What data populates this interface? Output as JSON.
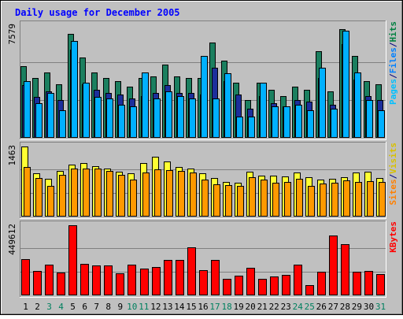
{
  "chart_data": {
    "type": "bar",
    "title": "Daily usage for December 2005",
    "categories": [
      "1",
      "2",
      "3",
      "4",
      "5",
      "6",
      "7",
      "8",
      "9",
      "10",
      "11",
      "12",
      "13",
      "14",
      "15",
      "16",
      "17",
      "18",
      "19",
      "20",
      "21",
      "22",
      "23",
      "24",
      "25",
      "26",
      "27",
      "28",
      "29",
      "30",
      "31"
    ],
    "weekend_days": [
      "3",
      "4",
      "10",
      "11",
      "17",
      "18",
      "24",
      "25",
      "31"
    ],
    "panels": [
      {
        "id": "hits",
        "max_label": "7579",
        "max": 7579,
        "legend": [
          {
            "text": "Hits",
            "color": "#008040"
          },
          {
            "text": "/",
            "color": "#000080"
          },
          {
            "text": "Files",
            "color": "#0080ff"
          },
          {
            "text": "/",
            "color": "#000080"
          },
          {
            "text": "Pages",
            "color": "#00c0ff"
          }
        ],
        "series": [
          {
            "name": "Hits",
            "color": "#1b7f5f",
            "values": [
              4800,
              4000,
              4400,
              3600,
              7000,
              5400,
              4400,
              4000,
              3800,
              3400,
              4000,
              4100,
              4900,
              4100,
              4000,
              4000,
              6400,
              5200,
              3700,
              2500,
              3700,
              3200,
              2800,
              3400,
              3200,
              5800,
              3100,
              7300,
              5500,
              3800,
              3600
            ]
          },
          {
            "name": "Files",
            "color": "#1c2f9c",
            "values": [
              3500,
              2700,
              3100,
              2500,
              5900,
              3600,
              3200,
              3000,
              2900,
              2600,
              2800,
              3000,
              3500,
              3000,
              3000,
              2900,
              4700,
              3800,
              2900,
              1900,
              2800,
              2300,
              2100,
              2500,
              2400,
              4000,
              2200,
              6300,
              3900,
              2800,
              2500
            ]
          },
          {
            "name": "Pages",
            "color": "#00b0ff",
            "values": [
              3800,
              2300,
              3000,
              1800,
              6500,
              3700,
              2700,
              2600,
              2200,
              2100,
              4400,
              2600,
              3100,
              2800,
              2600,
              5500,
              2600,
              4300,
              1400,
              1400,
              3700,
              2100,
              2100,
              2200,
              1800,
              4700,
              1900,
              7200,
              4400,
              2500,
              1800
            ]
          }
        ]
      },
      {
        "id": "visits",
        "max_label": "1463",
        "max": 1463,
        "legend": [
          {
            "text": "Visits",
            "color": "#d8c000"
          },
          {
            "text": "/",
            "color": "#000080"
          },
          {
            "text": "Sites",
            "color": "#ff8000"
          }
        ],
        "series": [
          {
            "name": "Visits",
            "color": "#ffff33",
            "values": [
              1463,
              900,
              780,
              950,
              1080,
              1120,
              1040,
              1000,
              930,
              890,
              1110,
              1240,
              1150,
              1030,
              1000,
              890,
              790,
              720,
              700,
              930,
              850,
              850,
              830,
              920,
              820,
              760,
              780,
              810,
              920,
              930,
              790
            ]
          },
          {
            "name": "Sites",
            "color": "#ff9900",
            "values": [
              1030,
              790,
              640,
              860,
              1000,
              1000,
              990,
              940,
              870,
              760,
              910,
              980,
              960,
              940,
              910,
              760,
              660,
              650,
              640,
              820,
              770,
              690,
              710,
              780,
              640,
              680,
              690,
              750,
              720,
              730,
              710
            ]
          }
        ]
      },
      {
        "id": "kbytes",
        "max_label": "449612",
        "max": 449612,
        "legend": [
          {
            "text": "KBytes",
            "color": "#ff0000"
          }
        ],
        "series": [
          {
            "name": "KBytes",
            "color": "#ff0000",
            "values": [
              230000,
              155000,
              195000,
              145000,
              449612,
              200000,
              190000,
              190000,
              140000,
              195000,
              170000,
              180000,
              225000,
              225000,
              305000,
              160000,
              225000,
              100000,
              125000,
              175000,
              100000,
              120000,
              130000,
              195000,
              60000,
              150000,
              385000,
              325000,
              150000,
              155000,
              135000
            ]
          }
        ]
      }
    ]
  }
}
